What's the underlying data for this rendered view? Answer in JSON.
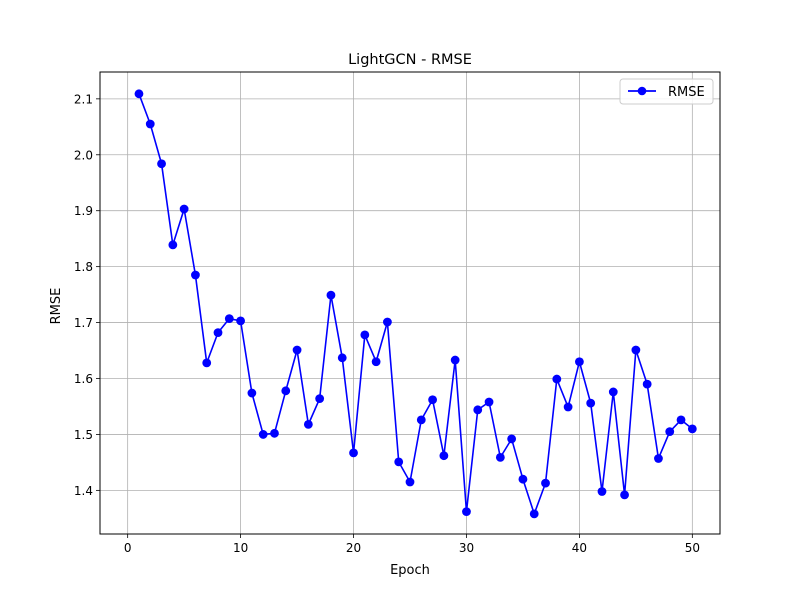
{
  "chart_data": {
    "type": "line",
    "title": "LightGCN - RMSE",
    "xlabel": "Epoch",
    "ylabel": "RMSE",
    "xlim": [
      -2.45,
      52.45
    ],
    "ylim": [
      1.322,
      2.148
    ],
    "xticks": [
      0,
      10,
      20,
      30,
      40,
      50
    ],
    "yticks": [
      1.4,
      1.5,
      1.6,
      1.7,
      1.8,
      1.9,
      2.0,
      2.1
    ],
    "grid": true,
    "legend_position": "top-right",
    "series": [
      {
        "name": "RMSE",
        "color": "#0000ff",
        "marker": "circle",
        "x": [
          1,
          2,
          3,
          4,
          5,
          6,
          7,
          8,
          9,
          10,
          11,
          12,
          13,
          14,
          15,
          16,
          17,
          18,
          19,
          20,
          21,
          22,
          23,
          24,
          25,
          26,
          27,
          28,
          29,
          30,
          31,
          32,
          33,
          34,
          35,
          36,
          37,
          38,
          39,
          40,
          41,
          42,
          43,
          44,
          45,
          46,
          47,
          48,
          49,
          50
        ],
        "values": [
          2.109,
          2.055,
          1.984,
          1.839,
          1.903,
          1.785,
          1.628,
          1.682,
          1.707,
          1.703,
          1.574,
          1.5,
          1.502,
          1.578,
          1.651,
          1.518,
          1.564,
          1.749,
          1.637,
          1.467,
          1.678,
          1.63,
          1.701,
          1.451,
          1.415,
          1.526,
          1.562,
          1.462,
          1.633,
          1.362,
          1.544,
          1.558,
          1.459,
          1.492,
          1.42,
          1.358,
          1.413,
          1.599,
          1.549,
          1.63,
          1.556,
          1.398,
          1.576,
          1.392,
          1.651,
          1.59,
          1.457,
          1.505,
          1.526,
          1.51
        ]
      }
    ]
  }
}
